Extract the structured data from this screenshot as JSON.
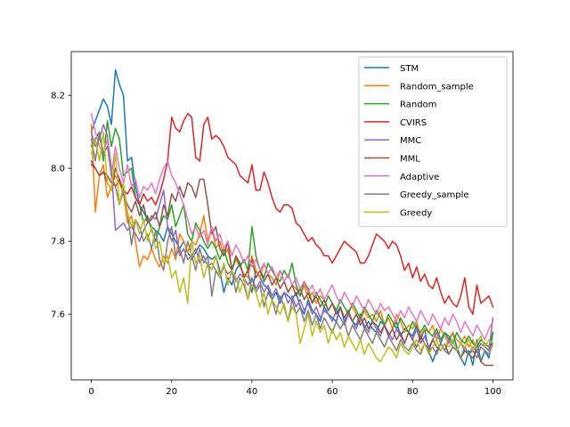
{
  "chart_data": {
    "type": "line",
    "title": "",
    "xlabel": "",
    "ylabel": "",
    "xlim": [
      -5,
      105
    ],
    "ylim": [
      7.42,
      8.32
    ],
    "xticks": [
      0,
      20,
      40,
      60,
      80,
      100
    ],
    "yticks": [
      7.6,
      7.8,
      8.0,
      8.2
    ],
    "xtick_labels": [
      "0",
      "20",
      "40",
      "60",
      "80",
      "100"
    ],
    "ytick_labels": [
      "7.6",
      "7.8",
      "8.0",
      "8.2"
    ],
    "grid": false,
    "legend_position": "top-right",
    "x_step": 1,
    "series": [
      {
        "name": "STM",
        "color": "#1f77b4",
        "values": [
          8.1,
          8.13,
          8.16,
          8.19,
          8.17,
          8.12,
          8.27,
          8.23,
          8.2,
          8.02,
          8.03,
          7.95,
          7.9,
          7.88,
          7.86,
          7.84,
          7.83,
          7.82,
          7.8,
          7.84,
          7.82,
          7.8,
          7.78,
          7.8,
          7.77,
          7.75,
          7.77,
          7.79,
          7.78,
          7.76,
          7.75,
          7.76,
          7.72,
          7.66,
          7.7,
          7.68,
          7.72,
          7.74,
          7.7,
          7.72,
          7.66,
          7.72,
          7.7,
          7.68,
          7.67,
          7.64,
          7.66,
          7.63,
          7.66,
          7.65,
          7.64,
          7.66,
          7.62,
          7.6,
          7.64,
          7.61,
          7.6,
          7.58,
          7.62,
          7.6,
          7.59,
          7.58,
          7.62,
          7.58,
          7.6,
          7.58,
          7.57,
          7.6,
          7.56,
          7.58,
          7.56,
          7.55,
          7.58,
          7.57,
          7.54,
          7.56,
          7.58,
          7.54,
          7.56,
          7.55,
          7.54,
          7.57,
          7.53,
          7.56,
          7.5,
          7.47,
          7.5,
          7.52,
          7.55,
          7.53,
          7.55,
          7.51,
          7.48,
          7.46,
          7.5,
          7.46,
          7.53,
          7.47,
          7.5,
          7.48,
          7.55
        ]
      },
      {
        "name": "Random_sample",
        "color": "#ff7f0e",
        "values": [
          8.12,
          7.88,
          7.98,
          8.01,
          7.92,
          7.95,
          7.98,
          7.96,
          7.93,
          7.85,
          7.87,
          7.8,
          7.73,
          7.76,
          7.75,
          7.78,
          7.75,
          7.73,
          7.76,
          7.74,
          7.78,
          7.75,
          7.82,
          7.8,
          7.77,
          7.8,
          7.79,
          7.82,
          7.87,
          7.8,
          7.84,
          7.78,
          7.8,
          7.76,
          7.78,
          7.72,
          7.75,
          7.73,
          7.71,
          7.7,
          7.76,
          7.72,
          7.7,
          7.74,
          7.71,
          7.7,
          7.68,
          7.72,
          7.69,
          7.66,
          7.68,
          7.67,
          7.65,
          7.68,
          7.64,
          7.66,
          7.63,
          7.65,
          7.64,
          7.61,
          7.63,
          7.6,
          7.62,
          7.59,
          7.61,
          7.62,
          7.6,
          7.58,
          7.61,
          7.59,
          7.6,
          7.58,
          7.61,
          7.57,
          7.59,
          7.56,
          7.6,
          7.58,
          7.55,
          7.57,
          7.56,
          7.58,
          7.54,
          7.56,
          7.55,
          7.57,
          7.53,
          7.56,
          7.54,
          7.52,
          7.55,
          7.53,
          7.52,
          7.54,
          7.51,
          7.53,
          7.5,
          7.52,
          7.51,
          7.5,
          7.52
        ]
      },
      {
        "name": "Random",
        "color": "#2ca02c",
        "values": [
          8.06,
          8.08,
          8.1,
          8.02,
          8.13,
          8.06,
          8.11,
          8.08,
          7.98,
          7.99,
          8.0,
          7.92,
          7.9,
          7.85,
          7.87,
          7.83,
          7.8,
          7.84,
          7.87,
          7.86,
          7.9,
          7.84,
          7.87,
          7.9,
          7.82,
          7.8,
          7.85,
          7.83,
          7.8,
          7.78,
          7.8,
          7.78,
          7.75,
          7.78,
          7.74,
          7.72,
          7.76,
          7.73,
          7.75,
          7.72,
          7.84,
          7.76,
          7.72,
          7.7,
          7.74,
          7.72,
          7.7,
          7.69,
          7.72,
          7.7,
          7.74,
          7.68,
          7.65,
          7.69,
          7.67,
          7.63,
          7.66,
          7.64,
          7.62,
          7.65,
          7.63,
          7.61,
          7.64,
          7.62,
          7.6,
          7.63,
          7.61,
          7.59,
          7.62,
          7.6,
          7.58,
          7.61,
          7.59,
          7.57,
          7.6,
          7.58,
          7.56,
          7.59,
          7.57,
          7.55,
          7.58,
          7.56,
          7.55,
          7.57,
          7.55,
          7.54,
          7.56,
          7.53,
          7.55,
          7.54,
          7.52,
          7.55,
          7.53,
          7.52,
          7.54,
          7.52,
          7.51,
          7.53,
          7.52,
          7.51,
          7.55
        ]
      },
      {
        "name": "CVIRS",
        "color": "#d62728",
        "values": [
          8.02,
          8.0,
          7.98,
          7.99,
          7.98,
          7.96,
          7.95,
          7.97,
          7.94,
          7.93,
          7.95,
          7.92,
          7.9,
          7.93,
          7.91,
          7.92,
          7.9,
          7.93,
          7.97,
          8.02,
          8.14,
          8.11,
          8.1,
          8.13,
          8.15,
          8.14,
          8.03,
          8.02,
          8.12,
          8.14,
          8.08,
          8.09,
          8.08,
          8.06,
          8.03,
          8.02,
          8.01,
          7.98,
          7.97,
          7.96,
          8.01,
          7.94,
          7.94,
          7.99,
          7.96,
          7.92,
          7.89,
          7.88,
          7.9,
          7.9,
          7.89,
          7.85,
          7.84,
          7.82,
          7.8,
          7.81,
          7.79,
          7.78,
          7.76,
          7.76,
          7.74,
          7.76,
          7.78,
          7.8,
          7.79,
          7.78,
          7.77,
          7.74,
          7.74,
          7.76,
          7.79,
          7.82,
          7.81,
          7.8,
          7.78,
          7.8,
          7.79,
          7.76,
          7.72,
          7.74,
          7.7,
          7.73,
          7.69,
          7.71,
          7.68,
          7.67,
          7.7,
          7.66,
          7.63,
          7.65,
          7.63,
          7.62,
          7.65,
          7.7,
          7.62,
          7.6,
          7.68,
          7.63,
          7.64,
          7.65,
          7.62
        ]
      },
      {
        "name": "MMC",
        "color": "#9467bd",
        "values": [
          8.1,
          8.06,
          8.08,
          8.12,
          8.09,
          8.0,
          7.83,
          7.84,
          7.85,
          7.83,
          7.84,
          7.82,
          7.8,
          7.83,
          7.85,
          7.87,
          7.86,
          7.9,
          7.94,
          7.84,
          7.8,
          7.83,
          7.76,
          7.78,
          7.75,
          7.76,
          7.78,
          7.74,
          7.76,
          7.73,
          7.74,
          7.72,
          7.7,
          7.73,
          7.71,
          7.72,
          7.69,
          7.71,
          7.7,
          7.68,
          7.7,
          7.67,
          7.69,
          7.66,
          7.68,
          7.65,
          7.67,
          7.64,
          7.66,
          7.63,
          7.65,
          7.62,
          7.64,
          7.61,
          7.63,
          7.6,
          7.62,
          7.59,
          7.61,
          7.6,
          7.58,
          7.61,
          7.59,
          7.57,
          7.6,
          7.58,
          7.56,
          7.59,
          7.57,
          7.55,
          7.58,
          7.56,
          7.54,
          7.57,
          7.55,
          7.53,
          7.56,
          7.54,
          7.52,
          7.55,
          7.53,
          7.56,
          7.52,
          7.54,
          7.51,
          7.53,
          7.55,
          7.52,
          7.5,
          7.53,
          7.51,
          7.5,
          7.52,
          7.5,
          7.49,
          7.51,
          7.5,
          7.52,
          7.51,
          7.5,
          7.59
        ]
      },
      {
        "name": "MML",
        "color": "#8c564b",
        "values": [
          8.01,
          8.0,
          7.98,
          7.99,
          7.96,
          7.94,
          8.0,
          7.97,
          7.93,
          7.9,
          7.88,
          7.91,
          7.87,
          7.9,
          7.85,
          7.86,
          7.88,
          7.84,
          7.9,
          7.87,
          7.93,
          7.91,
          7.95,
          7.92,
          7.96,
          7.95,
          7.92,
          7.97,
          7.97,
          7.9,
          7.82,
          7.84,
          7.78,
          7.76,
          7.8,
          7.72,
          7.76,
          7.74,
          7.7,
          7.72,
          7.75,
          7.7,
          7.72,
          7.69,
          7.71,
          7.68,
          7.7,
          7.67,
          7.69,
          7.66,
          7.68,
          7.65,
          7.67,
          7.64,
          7.66,
          7.63,
          7.65,
          7.62,
          7.64,
          7.61,
          7.63,
          7.6,
          7.62,
          7.59,
          7.61,
          7.58,
          7.6,
          7.57,
          7.59,
          7.56,
          7.58,
          7.57,
          7.55,
          7.57,
          7.54,
          7.56,
          7.53,
          7.55,
          7.52,
          7.55,
          7.53,
          7.51,
          7.54,
          7.52,
          7.5,
          7.53,
          7.51,
          7.5,
          7.52,
          7.49,
          7.51,
          7.5,
          7.48,
          7.5,
          7.49,
          7.48,
          7.5,
          7.47,
          7.46,
          7.46,
          7.46
        ]
      },
      {
        "name": "Adaptive",
        "color": "#e377c2",
        "values": [
          8.15,
          8.1,
          8.06,
          8.04,
          8.08,
          7.98,
          8.06,
          8.0,
          7.96,
          8.01,
          7.95,
          7.97,
          7.92,
          7.95,
          7.94,
          7.96,
          7.93,
          7.97,
          8.0,
          8.02,
          7.98,
          7.96,
          7.93,
          7.9,
          7.86,
          7.82,
          7.84,
          7.81,
          7.83,
          7.79,
          7.84,
          7.8,
          7.82,
          7.78,
          7.8,
          7.76,
          7.79,
          7.77,
          7.74,
          7.76,
          7.73,
          7.75,
          7.72,
          7.74,
          7.71,
          7.73,
          7.7,
          7.72,
          7.69,
          7.71,
          7.68,
          7.7,
          7.67,
          7.69,
          7.66,
          7.68,
          7.65,
          7.67,
          7.64,
          7.66,
          7.68,
          7.65,
          7.63,
          7.66,
          7.64,
          7.62,
          7.65,
          7.63,
          7.61,
          7.64,
          7.62,
          7.6,
          7.63,
          7.61,
          7.62,
          7.6,
          7.58,
          7.61,
          7.59,
          7.62,
          7.6,
          7.58,
          7.61,
          7.59,
          7.57,
          7.6,
          7.58,
          7.56,
          7.59,
          7.57,
          7.6,
          7.58,
          7.55,
          7.58,
          7.56,
          7.54,
          7.57,
          7.55,
          7.53,
          7.56,
          7.58
        ]
      },
      {
        "name": "Greedy_sample",
        "color": "#7f7f7f",
        "values": [
          8.08,
          8.02,
          8.1,
          8.04,
          8.06,
          7.98,
          7.95,
          7.9,
          7.94,
          7.88,
          7.79,
          7.86,
          7.84,
          7.8,
          7.82,
          7.78,
          7.83,
          7.75,
          7.72,
          7.8,
          7.84,
          7.76,
          7.78,
          7.74,
          7.8,
          7.76,
          7.72,
          7.78,
          7.74,
          7.76,
          7.65,
          7.72,
          7.7,
          7.74,
          7.68,
          7.72,
          7.66,
          7.7,
          7.68,
          7.64,
          7.7,
          7.66,
          7.68,
          7.62,
          7.66,
          7.64,
          7.6,
          7.65,
          7.62,
          7.58,
          7.64,
          7.6,
          7.62,
          7.58,
          7.61,
          7.57,
          7.6,
          7.56,
          7.59,
          7.57,
          7.55,
          7.58,
          7.56,
          7.58,
          7.54,
          7.57,
          7.55,
          7.53,
          7.56,
          7.54,
          7.52,
          7.55,
          7.53,
          7.51,
          7.54,
          7.52,
          7.5,
          7.53,
          7.51,
          7.5,
          7.52,
          7.5,
          7.49,
          7.52,
          7.5,
          7.51,
          7.49,
          7.52,
          7.5,
          7.49,
          7.51,
          7.5,
          7.48,
          7.51,
          7.49,
          7.5,
          7.48,
          7.51,
          7.5,
          7.49,
          7.52
        ]
      },
      {
        "name": "Greedy",
        "color": "#bcbd22",
        "values": [
          8.04,
          8.08,
          8.02,
          8.1,
          7.96,
          7.94,
          8.04,
          7.9,
          7.96,
          7.88,
          7.84,
          7.86,
          7.82,
          7.86,
          7.8,
          7.84,
          7.78,
          7.8,
          7.74,
          7.76,
          7.7,
          7.72,
          7.66,
          7.7,
          7.63,
          7.8,
          7.74,
          7.76,
          7.7,
          7.74,
          7.72,
          7.76,
          7.7,
          7.74,
          7.68,
          7.72,
          7.7,
          7.66,
          7.7,
          7.64,
          7.68,
          7.66,
          7.62,
          7.66,
          7.6,
          7.64,
          7.62,
          7.6,
          7.63,
          7.58,
          7.62,
          7.6,
          7.52,
          7.56,
          7.6,
          7.54,
          7.58,
          7.55,
          7.57,
          7.52,
          7.56,
          7.53,
          7.55,
          7.51,
          7.54,
          7.52,
          7.5,
          7.53,
          7.49,
          7.52,
          7.5,
          7.48,
          7.47,
          7.49,
          7.51,
          7.5,
          7.48,
          7.52,
          7.5,
          7.49,
          7.51,
          7.53,
          7.5,
          7.52,
          7.49,
          7.51,
          7.53,
          7.5,
          7.52,
          7.51,
          7.53,
          7.5,
          7.52,
          7.51,
          7.53,
          7.5,
          7.52,
          7.54,
          7.51,
          7.53,
          7.52
        ]
      }
    ]
  }
}
